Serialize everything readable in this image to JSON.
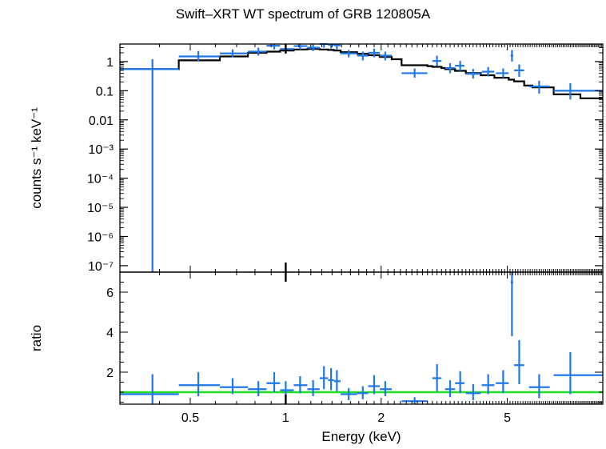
{
  "chart_data": {
    "type": "scatter",
    "title": "Swift–XRT WT spectrum of GRB 120805A",
    "xlabel": "Energy (keV)",
    "xscale": "log",
    "xlim": [
      0.3,
      10.0
    ],
    "x_ticks": [
      "0.5",
      "1",
      "2",
      "5"
    ],
    "colors": {
      "data": "#1f78e8",
      "model": "#000000",
      "unity": "#22dd22",
      "frame": "#000000"
    },
    "panels": [
      {
        "name": "spectrum",
        "ylabel": "counts s⁻¹ keV⁻¹",
        "yscale": "log",
        "ylim": [
          6e-08,
          4
        ],
        "y_ticks": [
          "1",
          "0.1",
          "0.01",
          "10⁻³",
          "10⁻⁴",
          "10⁻⁵",
          "10⁻⁶",
          "10⁻⁷"
        ],
        "points": [
          {
            "x": 0.38,
            "xlo": 0.3,
            "xhi": 0.46,
            "y": 0.55,
            "ylo": 6e-08,
            "yhi": 1.2
          },
          {
            "x": 0.53,
            "xlo": 0.46,
            "xhi": 0.62,
            "y": 1.5,
            "ylo": 1.0,
            "yhi": 2.3
          },
          {
            "x": 0.68,
            "xlo": 0.62,
            "xhi": 0.76,
            "y": 1.9,
            "ylo": 1.4,
            "yhi": 2.6
          },
          {
            "x": 0.82,
            "xlo": 0.76,
            "xhi": 0.87,
            "y": 2.2,
            "ylo": 1.6,
            "yhi": 3.0
          },
          {
            "x": 0.92,
            "xlo": 0.87,
            "xhi": 0.96,
            "y": 3.5,
            "ylo": 2.6,
            "yhi": 4.0
          },
          {
            "x": 1.0,
            "xlo": 0.96,
            "xhi": 1.06,
            "y": 2.7,
            "ylo": 2.0,
            "yhi": 3.6
          },
          {
            "x": 1.11,
            "xlo": 1.06,
            "xhi": 1.17,
            "y": 3.4,
            "ylo": 2.6,
            "yhi": 4.0
          },
          {
            "x": 1.22,
            "xlo": 1.17,
            "xhi": 1.28,
            "y": 3.0,
            "ylo": 2.3,
            "yhi": 3.9
          },
          {
            "x": 1.32,
            "xlo": 1.28,
            "xhi": 1.36,
            "y": 4.0,
            "ylo": 3.0,
            "yhi": 4.0
          },
          {
            "x": 1.39,
            "xlo": 1.36,
            "xhi": 1.42,
            "y": 3.8,
            "ylo": 2.8,
            "yhi": 4.0
          },
          {
            "x": 1.45,
            "xlo": 1.42,
            "xhi": 1.49,
            "y": 3.6,
            "ylo": 2.6,
            "yhi": 4.0
          },
          {
            "x": 1.58,
            "xlo": 1.49,
            "xhi": 1.68,
            "y": 1.9,
            "ylo": 1.4,
            "yhi": 2.5
          },
          {
            "x": 1.75,
            "xlo": 1.68,
            "xhi": 1.82,
            "y": 1.6,
            "ylo": 1.1,
            "yhi": 2.2
          },
          {
            "x": 1.9,
            "xlo": 1.82,
            "xhi": 1.98,
            "y": 2.0,
            "ylo": 1.4,
            "yhi": 2.8
          },
          {
            "x": 2.06,
            "xlo": 1.98,
            "xhi": 2.16,
            "y": 1.6,
            "ylo": 1.1,
            "yhi": 2.2
          },
          {
            "x": 2.55,
            "xlo": 2.32,
            "xhi": 2.8,
            "y": 0.4,
            "ylo": 0.28,
            "yhi": 0.58
          },
          {
            "x": 3.0,
            "xlo": 2.9,
            "xhi": 3.1,
            "y": 1.05,
            "ylo": 0.7,
            "yhi": 1.6
          },
          {
            "x": 3.3,
            "xlo": 3.18,
            "xhi": 3.42,
            "y": 0.6,
            "ylo": 0.4,
            "yhi": 0.88
          },
          {
            "x": 3.55,
            "xlo": 3.42,
            "xhi": 3.66,
            "y": 0.72,
            "ylo": 0.48,
            "yhi": 1.05
          },
          {
            "x": 3.9,
            "xlo": 3.7,
            "xhi": 4.12,
            "y": 0.38,
            "ylo": 0.26,
            "yhi": 0.56
          },
          {
            "x": 4.35,
            "xlo": 4.15,
            "xhi": 4.55,
            "y": 0.45,
            "ylo": 0.31,
            "yhi": 0.65
          },
          {
            "x": 4.85,
            "xlo": 4.6,
            "xhi": 5.05,
            "y": 0.4,
            "ylo": 0.28,
            "yhi": 0.58
          },
          {
            "x": 5.17,
            "xlo": 5.12,
            "xhi": 5.22,
            "y": 1.6,
            "ylo": 1.0,
            "yhi": 2.5
          },
          {
            "x": 5.45,
            "xlo": 5.25,
            "xhi": 5.65,
            "y": 0.5,
            "ylo": 0.3,
            "yhi": 0.8
          },
          {
            "x": 6.3,
            "xlo": 5.85,
            "xhi": 6.8,
            "y": 0.14,
            "ylo": 0.08,
            "yhi": 0.22
          },
          {
            "x": 7.9,
            "xlo": 7.0,
            "xhi": 10.0,
            "y": 0.1,
            "ylo": 0.05,
            "yhi": 0.18
          }
        ],
        "model_steps": [
          {
            "xlo": 0.3,
            "xhi": 0.46,
            "y": 0.55
          },
          {
            "xlo": 0.46,
            "xhi": 0.62,
            "y": 1.1
          },
          {
            "xlo": 0.62,
            "xhi": 0.76,
            "y": 1.5
          },
          {
            "xlo": 0.76,
            "xhi": 0.87,
            "y": 2.0
          },
          {
            "xlo": 0.87,
            "xhi": 0.96,
            "y": 2.2
          },
          {
            "xlo": 0.96,
            "xhi": 1.06,
            "y": 2.4
          },
          {
            "xlo": 1.06,
            "xhi": 1.17,
            "y": 2.6
          },
          {
            "xlo": 1.17,
            "xhi": 1.28,
            "y": 2.7
          },
          {
            "xlo": 1.28,
            "xhi": 1.36,
            "y": 2.6
          },
          {
            "xlo": 1.36,
            "xhi": 1.42,
            "y": 2.5
          },
          {
            "xlo": 1.42,
            "xhi": 1.49,
            "y": 2.4
          },
          {
            "xlo": 1.49,
            "xhi": 1.68,
            "y": 2.1
          },
          {
            "xlo": 1.68,
            "xhi": 1.82,
            "y": 1.85
          },
          {
            "xlo": 1.82,
            "xhi": 1.98,
            "y": 1.65
          },
          {
            "xlo": 1.98,
            "xhi": 2.16,
            "y": 1.45
          },
          {
            "xlo": 2.16,
            "xhi": 2.32,
            "y": 1.2
          },
          {
            "xlo": 2.32,
            "xhi": 2.8,
            "y": 0.75
          },
          {
            "xlo": 2.8,
            "xhi": 2.9,
            "y": 0.7
          },
          {
            "xlo": 2.9,
            "xhi": 3.1,
            "y": 0.66
          },
          {
            "xlo": 3.1,
            "xhi": 3.18,
            "y": 0.6
          },
          {
            "xlo": 3.18,
            "xhi": 3.42,
            "y": 0.55
          },
          {
            "xlo": 3.42,
            "xhi": 3.7,
            "y": 0.48
          },
          {
            "xlo": 3.7,
            "xhi": 4.12,
            "y": 0.4
          },
          {
            "xlo": 4.12,
            "xhi": 4.55,
            "y": 0.34
          },
          {
            "xlo": 4.55,
            "xhi": 5.05,
            "y": 0.28
          },
          {
            "xlo": 5.05,
            "xhi": 5.25,
            "y": 0.24
          },
          {
            "xlo": 5.25,
            "xhi": 5.65,
            "y": 0.21
          },
          {
            "xlo": 5.65,
            "xhi": 6.0,
            "y": 0.15
          },
          {
            "xlo": 6.0,
            "xhi": 7.0,
            "y": 0.13
          },
          {
            "xlo": 7.0,
            "xhi": 8.5,
            "y": 0.075
          },
          {
            "xlo": 8.5,
            "xhi": 10.0,
            "y": 0.055
          }
        ]
      },
      {
        "name": "ratio",
        "ylabel": "ratio",
        "yscale": "linear",
        "ylim": [
          0.4,
          7.0
        ],
        "y_ticks": [
          "2",
          "4",
          "6"
        ],
        "unity_line": 1.0,
        "points": [
          {
            "x": 0.38,
            "xlo": 0.3,
            "xhi": 0.46,
            "y": 0.9,
            "ylo": 0.4,
            "yhi": 1.9
          },
          {
            "x": 0.53,
            "xlo": 0.46,
            "xhi": 0.62,
            "y": 1.35,
            "ylo": 0.8,
            "yhi": 2.0
          },
          {
            "x": 0.68,
            "xlo": 0.62,
            "xhi": 0.76,
            "y": 1.25,
            "ylo": 0.9,
            "yhi": 1.7
          },
          {
            "x": 0.82,
            "xlo": 0.76,
            "xhi": 0.87,
            "y": 1.15,
            "ylo": 0.8,
            "yhi": 1.55
          },
          {
            "x": 0.92,
            "xlo": 0.87,
            "xhi": 0.96,
            "y": 1.45,
            "ylo": 1.0,
            "yhi": 2.0
          },
          {
            "x": 1.0,
            "xlo": 0.96,
            "xhi": 1.06,
            "y": 1.1,
            "ylo": 0.75,
            "yhi": 1.55
          },
          {
            "x": 1.11,
            "xlo": 1.06,
            "xhi": 1.17,
            "y": 1.35,
            "ylo": 0.95,
            "yhi": 1.8
          },
          {
            "x": 1.22,
            "xlo": 1.17,
            "xhi": 1.28,
            "y": 1.15,
            "ylo": 0.8,
            "yhi": 1.6
          },
          {
            "x": 1.32,
            "xlo": 1.28,
            "xhi": 1.36,
            "y": 1.7,
            "ylo": 1.15,
            "yhi": 2.3
          },
          {
            "x": 1.39,
            "xlo": 1.36,
            "xhi": 1.42,
            "y": 1.6,
            "ylo": 1.1,
            "yhi": 2.2
          },
          {
            "x": 1.45,
            "xlo": 1.42,
            "xhi": 1.49,
            "y": 1.55,
            "ylo": 1.05,
            "yhi": 2.1
          },
          {
            "x": 1.58,
            "xlo": 1.49,
            "xhi": 1.68,
            "y": 0.9,
            "ylo": 0.6,
            "yhi": 1.2
          },
          {
            "x": 1.75,
            "xlo": 1.68,
            "xhi": 1.82,
            "y": 0.95,
            "ylo": 0.65,
            "yhi": 1.3
          },
          {
            "x": 1.9,
            "xlo": 1.82,
            "xhi": 1.98,
            "y": 1.3,
            "ylo": 0.9,
            "yhi": 1.85
          },
          {
            "x": 2.06,
            "xlo": 1.98,
            "xhi": 2.16,
            "y": 1.15,
            "ylo": 0.8,
            "yhi": 1.55
          },
          {
            "x": 2.55,
            "xlo": 2.32,
            "xhi": 2.8,
            "y": 0.55,
            "ylo": 0.4,
            "yhi": 0.75
          },
          {
            "x": 3.0,
            "xlo": 2.9,
            "xhi": 3.1,
            "y": 1.7,
            "ylo": 1.05,
            "yhi": 2.4
          },
          {
            "x": 3.3,
            "xlo": 3.18,
            "xhi": 3.42,
            "y": 1.15,
            "ylo": 0.75,
            "yhi": 1.6
          },
          {
            "x": 3.55,
            "xlo": 3.42,
            "xhi": 3.66,
            "y": 1.45,
            "ylo": 0.95,
            "yhi": 2.05
          },
          {
            "x": 3.9,
            "xlo": 3.7,
            "xhi": 4.12,
            "y": 0.95,
            "ylo": 0.6,
            "yhi": 1.4
          },
          {
            "x": 4.35,
            "xlo": 4.15,
            "xhi": 4.55,
            "y": 1.35,
            "ylo": 0.9,
            "yhi": 1.9
          },
          {
            "x": 4.85,
            "xlo": 4.6,
            "xhi": 5.05,
            "y": 1.45,
            "ylo": 0.95,
            "yhi": 2.1
          },
          {
            "x": 5.17,
            "xlo": 5.12,
            "xhi": 5.22,
            "y": 6.5,
            "ylo": 3.8,
            "yhi": 7.0
          },
          {
            "x": 5.45,
            "xlo": 5.25,
            "xhi": 5.65,
            "y": 2.35,
            "ylo": 1.4,
            "yhi": 3.6
          },
          {
            "x": 6.3,
            "xlo": 5.85,
            "xhi": 6.8,
            "y": 1.25,
            "ylo": 0.7,
            "yhi": 1.9
          },
          {
            "x": 7.9,
            "xlo": 7.0,
            "xhi": 10.0,
            "y": 1.85,
            "ylo": 0.9,
            "yhi": 3.0
          }
        ]
      }
    ]
  }
}
